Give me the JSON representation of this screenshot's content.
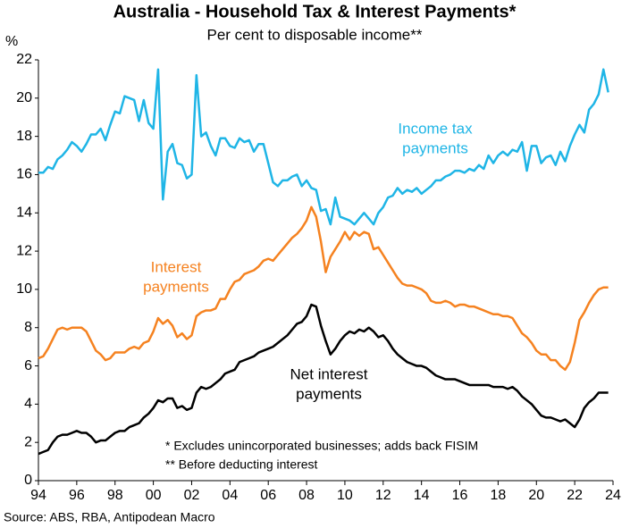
{
  "chart_data": {
    "type": "line",
    "title": "Australia - Household Tax & Interest Payments*",
    "subtitle": "Per cent to disposable income**",
    "y_label": "%",
    "notes": [
      "* Excludes unincorporated businesses; adds back FISIM",
      "** Before deducting interest"
    ],
    "source": "Source: ABS, RBA, Antipodean Macro",
    "xlim": [
      1994,
      2024
    ],
    "xticks": [
      {
        "value": 1994,
        "label": "94"
      },
      {
        "value": 1996,
        "label": "96"
      },
      {
        "value": 1998,
        "label": "98"
      },
      {
        "value": 2000,
        "label": "00"
      },
      {
        "value": 2002,
        "label": "02"
      },
      {
        "value": 2004,
        "label": "04"
      },
      {
        "value": 2006,
        "label": "06"
      },
      {
        "value": 2008,
        "label": "08"
      },
      {
        "value": 2010,
        "label": "10"
      },
      {
        "value": 2012,
        "label": "12"
      },
      {
        "value": 2014,
        "label": "14"
      },
      {
        "value": 2016,
        "label": "16"
      },
      {
        "value": 2018,
        "label": "18"
      },
      {
        "value": 2020,
        "label": "20"
      },
      {
        "value": 2022,
        "label": "22"
      },
      {
        "value": 2024,
        "label": "24"
      }
    ],
    "ylim": [
      0,
      22
    ],
    "yticks": [
      0,
      2,
      4,
      6,
      8,
      10,
      12,
      14,
      16,
      18,
      20,
      22
    ],
    "grid": false,
    "x": [
      1994,
      1994.25,
      1994.5,
      1994.75,
      1995,
      1995.25,
      1995.5,
      1995.75,
      1996,
      1996.25,
      1996.5,
      1996.75,
      1997,
      1997.25,
      1997.5,
      1997.75,
      1998,
      1998.25,
      1998.5,
      1998.75,
      1999,
      1999.25,
      1999.5,
      1999.75,
      2000,
      2000.25,
      2000.5,
      2000.75,
      2001,
      2001.25,
      2001.5,
      2001.75,
      2002,
      2002.25,
      2002.5,
      2002.75,
      2003,
      2003.25,
      2003.5,
      2003.75,
      2004,
      2004.25,
      2004.5,
      2004.75,
      2005,
      2005.25,
      2005.5,
      2005.75,
      2006,
      2006.25,
      2006.5,
      2006.75,
      2007,
      2007.25,
      2007.5,
      2007.75,
      2008,
      2008.25,
      2008.5,
      2008.75,
      2009,
      2009.25,
      2009.5,
      2009.75,
      2010,
      2010.25,
      2010.5,
      2010.75,
      2011,
      2011.25,
      2011.5,
      2011.75,
      2012,
      2012.25,
      2012.5,
      2012.75,
      2013,
      2013.25,
      2013.5,
      2013.75,
      2014,
      2014.25,
      2014.5,
      2014.75,
      2015,
      2015.25,
      2015.5,
      2015.75,
      2016,
      2016.25,
      2016.5,
      2016.75,
      2017,
      2017.25,
      2017.5,
      2017.75,
      2018,
      2018.25,
      2018.5,
      2018.75,
      2019,
      2019.25,
      2019.5,
      2019.75,
      2020,
      2020.25,
      2020.5,
      2020.75,
      2021,
      2021.25,
      2021.5,
      2021.75,
      2022,
      2022.25,
      2022.5,
      2022.75,
      2023,
      2023.25,
      2023.5,
      2023.75
    ],
    "series": [
      {
        "label_lines": [
          "Income tax",
          "payments"
        ],
        "color": "#1fb5e6",
        "values": [
          16.1,
          16.1,
          16.4,
          16.3,
          16.8,
          17.0,
          17.3,
          17.7,
          17.5,
          17.2,
          17.6,
          18.1,
          18.1,
          18.4,
          17.8,
          18.6,
          19.3,
          19.2,
          20.1,
          20.0,
          19.9,
          18.8,
          19.9,
          18.7,
          18.4,
          21.5,
          14.7,
          17.2,
          17.6,
          16.6,
          16.5,
          15.8,
          16.0,
          21.2,
          18.0,
          18.2,
          17.5,
          17.0,
          17.9,
          17.9,
          17.5,
          17.4,
          17.9,
          17.7,
          17.8,
          17.2,
          17.6,
          17.6,
          16.6,
          15.6,
          15.4,
          15.7,
          15.7,
          15.9,
          16.0,
          15.4,
          15.7,
          15.3,
          15.2,
          14.1,
          14.2,
          13.4,
          14.8,
          13.8,
          13.7,
          13.6,
          13.4,
          13.7,
          14.0,
          13.7,
          13.4,
          14.0,
          14.3,
          14.8,
          14.9,
          15.3,
          15.0,
          15.2,
          15.1,
          15.3,
          15.0,
          15.2,
          15.4,
          15.7,
          15.7,
          15.9,
          16.0,
          16.2,
          16.2,
          16.1,
          16.3,
          16.2,
          16.5,
          16.3,
          17.0,
          16.6,
          17.0,
          17.2,
          17.0,
          17.3,
          17.2,
          17.7,
          16.2,
          17.5,
          17.5,
          16.6,
          16.9,
          17.0,
          16.5,
          17.2,
          16.7,
          17.5,
          18.1,
          18.6,
          18.2,
          19.4,
          19.7,
          20.2,
          21.5,
          20.3
        ]
      },
      {
        "label_lines": [
          "Interest",
          "payments"
        ],
        "color": "#f58220",
        "values": [
          6.4,
          6.5,
          6.9,
          7.4,
          7.9,
          8.0,
          7.9,
          8.0,
          8.0,
          8.0,
          7.8,
          7.3,
          6.8,
          6.6,
          6.3,
          6.4,
          6.7,
          6.7,
          6.7,
          6.9,
          7.0,
          6.9,
          7.2,
          7.3,
          7.8,
          8.5,
          8.2,
          8.4,
          8.1,
          7.5,
          7.7,
          7.4,
          7.6,
          8.6,
          8.8,
          8.9,
          8.9,
          9.0,
          9.5,
          9.5,
          10.0,
          10.4,
          10.5,
          10.8,
          10.9,
          11.0,
          11.2,
          11.5,
          11.6,
          11.5,
          11.8,
          12.1,
          12.4,
          12.7,
          12.9,
          13.2,
          13.6,
          14.3,
          13.8,
          12.5,
          10.9,
          11.7,
          12.1,
          12.5,
          13.0,
          12.6,
          13.0,
          12.8,
          13.0,
          12.9,
          12.1,
          12.2,
          11.8,
          11.4,
          11.0,
          10.6,
          10.3,
          10.2,
          10.2,
          10.1,
          10.0,
          9.8,
          9.4,
          9.3,
          9.3,
          9.4,
          9.3,
          9.1,
          9.2,
          9.2,
          9.1,
          9.1,
          9.0,
          8.9,
          8.8,
          8.7,
          8.7,
          8.6,
          8.6,
          8.5,
          8.1,
          7.7,
          7.5,
          7.2,
          6.8,
          6.6,
          6.6,
          6.3,
          6.3,
          6.0,
          5.8,
          6.2,
          7.2,
          8.4,
          8.8,
          9.3,
          9.7,
          10.0,
          10.1,
          10.1
        ]
      },
      {
        "label_lines": [
          "Net interest",
          "payments"
        ],
        "color": "#000000",
        "values": [
          1.4,
          1.5,
          1.6,
          2.0,
          2.3,
          2.4,
          2.4,
          2.5,
          2.6,
          2.5,
          2.5,
          2.3,
          2.0,
          2.1,
          2.1,
          2.3,
          2.5,
          2.6,
          2.6,
          2.8,
          2.9,
          3.0,
          3.3,
          3.5,
          3.8,
          4.2,
          4.1,
          4.3,
          4.3,
          3.8,
          3.9,
          3.7,
          3.8,
          4.6,
          4.9,
          4.8,
          4.9,
          5.1,
          5.3,
          5.6,
          5.7,
          5.8,
          6.2,
          6.3,
          6.4,
          6.5,
          6.7,
          6.8,
          6.9,
          7.0,
          7.2,
          7.4,
          7.6,
          7.9,
          8.2,
          8.3,
          8.6,
          9.2,
          9.1,
          8.1,
          7.3,
          6.6,
          6.9,
          7.3,
          7.6,
          7.8,
          7.7,
          7.9,
          7.8,
          8.0,
          7.8,
          7.5,
          7.6,
          7.3,
          6.9,
          6.6,
          6.4,
          6.2,
          6.1,
          6.0,
          6.0,
          5.9,
          5.7,
          5.5,
          5.4,
          5.3,
          5.3,
          5.3,
          5.2,
          5.1,
          5.0,
          5.0,
          5.0,
          5.0,
          5.0,
          4.9,
          4.9,
          4.9,
          4.8,
          4.9,
          4.7,
          4.4,
          4.2,
          4.0,
          3.7,
          3.4,
          3.3,
          3.3,
          3.2,
          3.1,
          3.2,
          3.0,
          2.8,
          3.2,
          3.8,
          4.1,
          4.3,
          4.6,
          4.6,
          4.6
        ]
      }
    ]
  }
}
